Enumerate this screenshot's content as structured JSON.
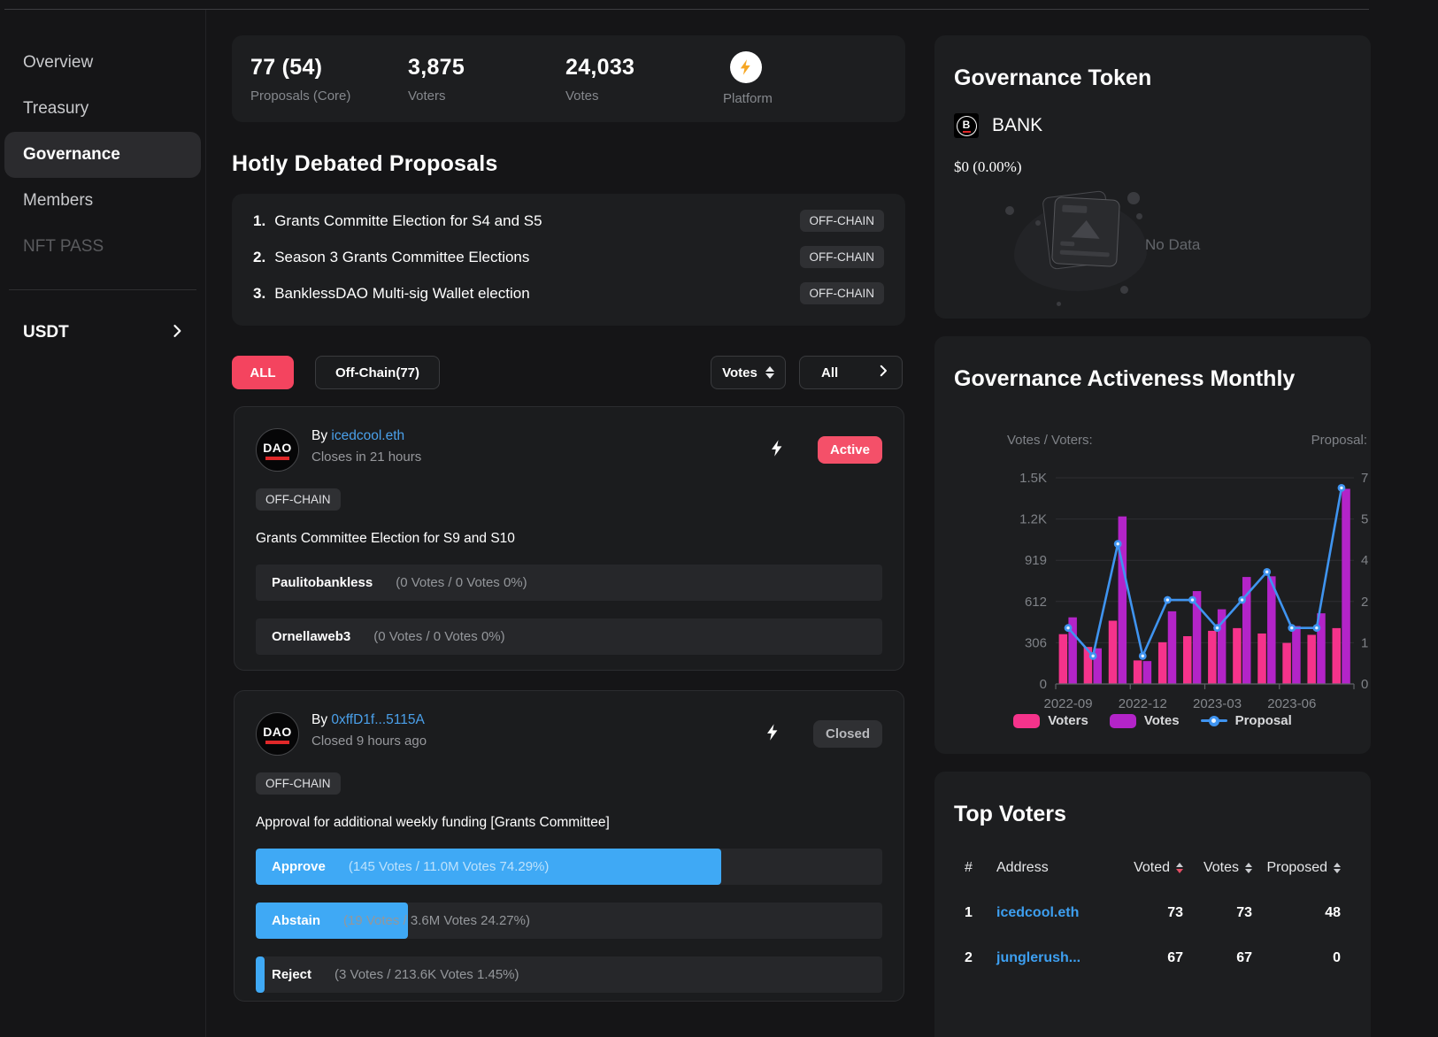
{
  "sidebar": {
    "items": [
      {
        "label": "Overview",
        "state": "normal"
      },
      {
        "label": "Treasury",
        "state": "normal"
      },
      {
        "label": "Governance",
        "state": "active"
      },
      {
        "label": "Members",
        "state": "normal"
      },
      {
        "label": "NFT PASS",
        "state": "disabled"
      }
    ],
    "token_menu_label": "USDT"
  },
  "stats": [
    {
      "value": "77 (54)",
      "label": "Proposals (Core)"
    },
    {
      "value": "3,875",
      "label": "Voters"
    },
    {
      "value": "24,033",
      "label": "Votes"
    },
    {
      "value": "",
      "label": "Platform",
      "icon": "lightning-icon"
    }
  ],
  "hotly_debated": {
    "title": "Hotly Debated Proposals",
    "items": [
      {
        "rank": "1.",
        "title": "Grants Committe Election for S4 and S5",
        "badge": "OFF-CHAIN"
      },
      {
        "rank": "2.",
        "title": "Season 3 Grants Committee Elections",
        "badge": "OFF-CHAIN"
      },
      {
        "rank": "3.",
        "title": "BanklessDAO Multi-sig Wallet election",
        "badge": "OFF-CHAIN"
      }
    ]
  },
  "filters": {
    "all_label": "ALL",
    "offchain_label": "Off-Chain(77)",
    "sort_label": "Votes",
    "scope_label": "All"
  },
  "proposals": [
    {
      "by_label": "By",
      "author": "icedcool.eth",
      "time": "Closes in 21 hours",
      "status": "Active",
      "status_type": "active",
      "tag": "OFF-CHAIN",
      "title": "Grants Committee Election for S9 and S10",
      "choices": [
        {
          "label": "Paulitobankless",
          "detail": "(0 Votes / 0 Votes 0%)",
          "pct": 0
        },
        {
          "label": "Ornellaweb3",
          "detail": "(0 Votes / 0 Votes 0%)",
          "pct": 0
        }
      ]
    },
    {
      "by_label": "By",
      "author": "0xffD1f...5115A",
      "time": "Closed 9 hours ago",
      "status": "Closed",
      "status_type": "closed",
      "tag": "OFF-CHAIN",
      "title": "Approval for additional weekly funding [Grants Committee]",
      "choices": [
        {
          "label": "Approve",
          "detail": "(145 Votes / 11.0M Votes 74.29%)",
          "pct": 74.29
        },
        {
          "label": "Abstain",
          "detail": "(19 Votes / 3.6M Votes 24.27%)",
          "pct": 24.27
        },
        {
          "label": "Reject",
          "detail": "(3 Votes / 213.6K Votes 1.45%)",
          "pct": 1.45
        }
      ]
    }
  ],
  "governance_token": {
    "title": "Governance Token",
    "symbol": "BANK",
    "price": "$0 (0.00%)",
    "no_data": "No Data"
  },
  "chart_data": {
    "type": "bar",
    "title": "Governance Activeness Monthly",
    "left_axis_label": "Votes / Voters:",
    "right_axis_label": "Proposal:",
    "x": [
      "2022-09",
      "2022-10",
      "2022-11",
      "2022-12",
      "2023-01",
      "2023-02",
      "2023-03",
      "2023-04",
      "2023-05",
      "2023-06",
      "2023-07",
      "2023-08"
    ],
    "x_tick_labels": [
      "2022-09",
      "2022-12",
      "2023-03",
      "2023-06"
    ],
    "left_ticks": [
      "1.5K",
      "1.2K",
      "919",
      "612",
      "306",
      "0"
    ],
    "right_ticks": [
      "7",
      "5",
      "4",
      "2",
      "1",
      "0"
    ],
    "left_max": 1532,
    "right_max": 7.36,
    "ylim_left": [
      0,
      1532
    ],
    "ylim_right": [
      0,
      7
    ],
    "grid": true,
    "legend_position": "bottom",
    "series": [
      {
        "name": "Voters",
        "type": "bar",
        "axis": "left",
        "color": "#f5338b",
        "values": [
          370,
          275,
          470,
          175,
          310,
          355,
          395,
          415,
          375,
          305,
          365,
          415
        ]
      },
      {
        "name": "Votes",
        "type": "bar",
        "axis": "left",
        "color": "#b324c8",
        "values": [
          495,
          265,
          1245,
          170,
          540,
          690,
          555,
          795,
          800,
          430,
          525,
          1450
        ]
      },
      {
        "name": "Proposal",
        "type": "line",
        "axis": "right",
        "color": "#3f94f0",
        "values": [
          2,
          1,
          5,
          1,
          3,
          3,
          2,
          3,
          4,
          2,
          2,
          7
        ]
      }
    ]
  },
  "top_voters": {
    "title": "Top Voters",
    "columns": [
      "#",
      "Address",
      "Voted",
      "Votes",
      "Proposed"
    ],
    "active_sort": "Voted",
    "rows": [
      {
        "rank": "1",
        "address": "icedcool.eth",
        "voted": "73",
        "votes": "73",
        "proposed": "48"
      },
      {
        "rank": "2",
        "address": "junglerush...",
        "voted": "67",
        "votes": "67",
        "proposed": "0"
      }
    ]
  },
  "colors": {
    "accent_pink": "#f4445f",
    "active_badge": "#f45069",
    "vote_bar_blue": "#3fa9f5",
    "link_blue": "#4aa0ea",
    "voters_pink": "#f5338b",
    "votes_purple": "#b324c8",
    "proposal_blue": "#3f94f0",
    "card_bg": "#1d1e20",
    "page_bg": "#151517"
  }
}
